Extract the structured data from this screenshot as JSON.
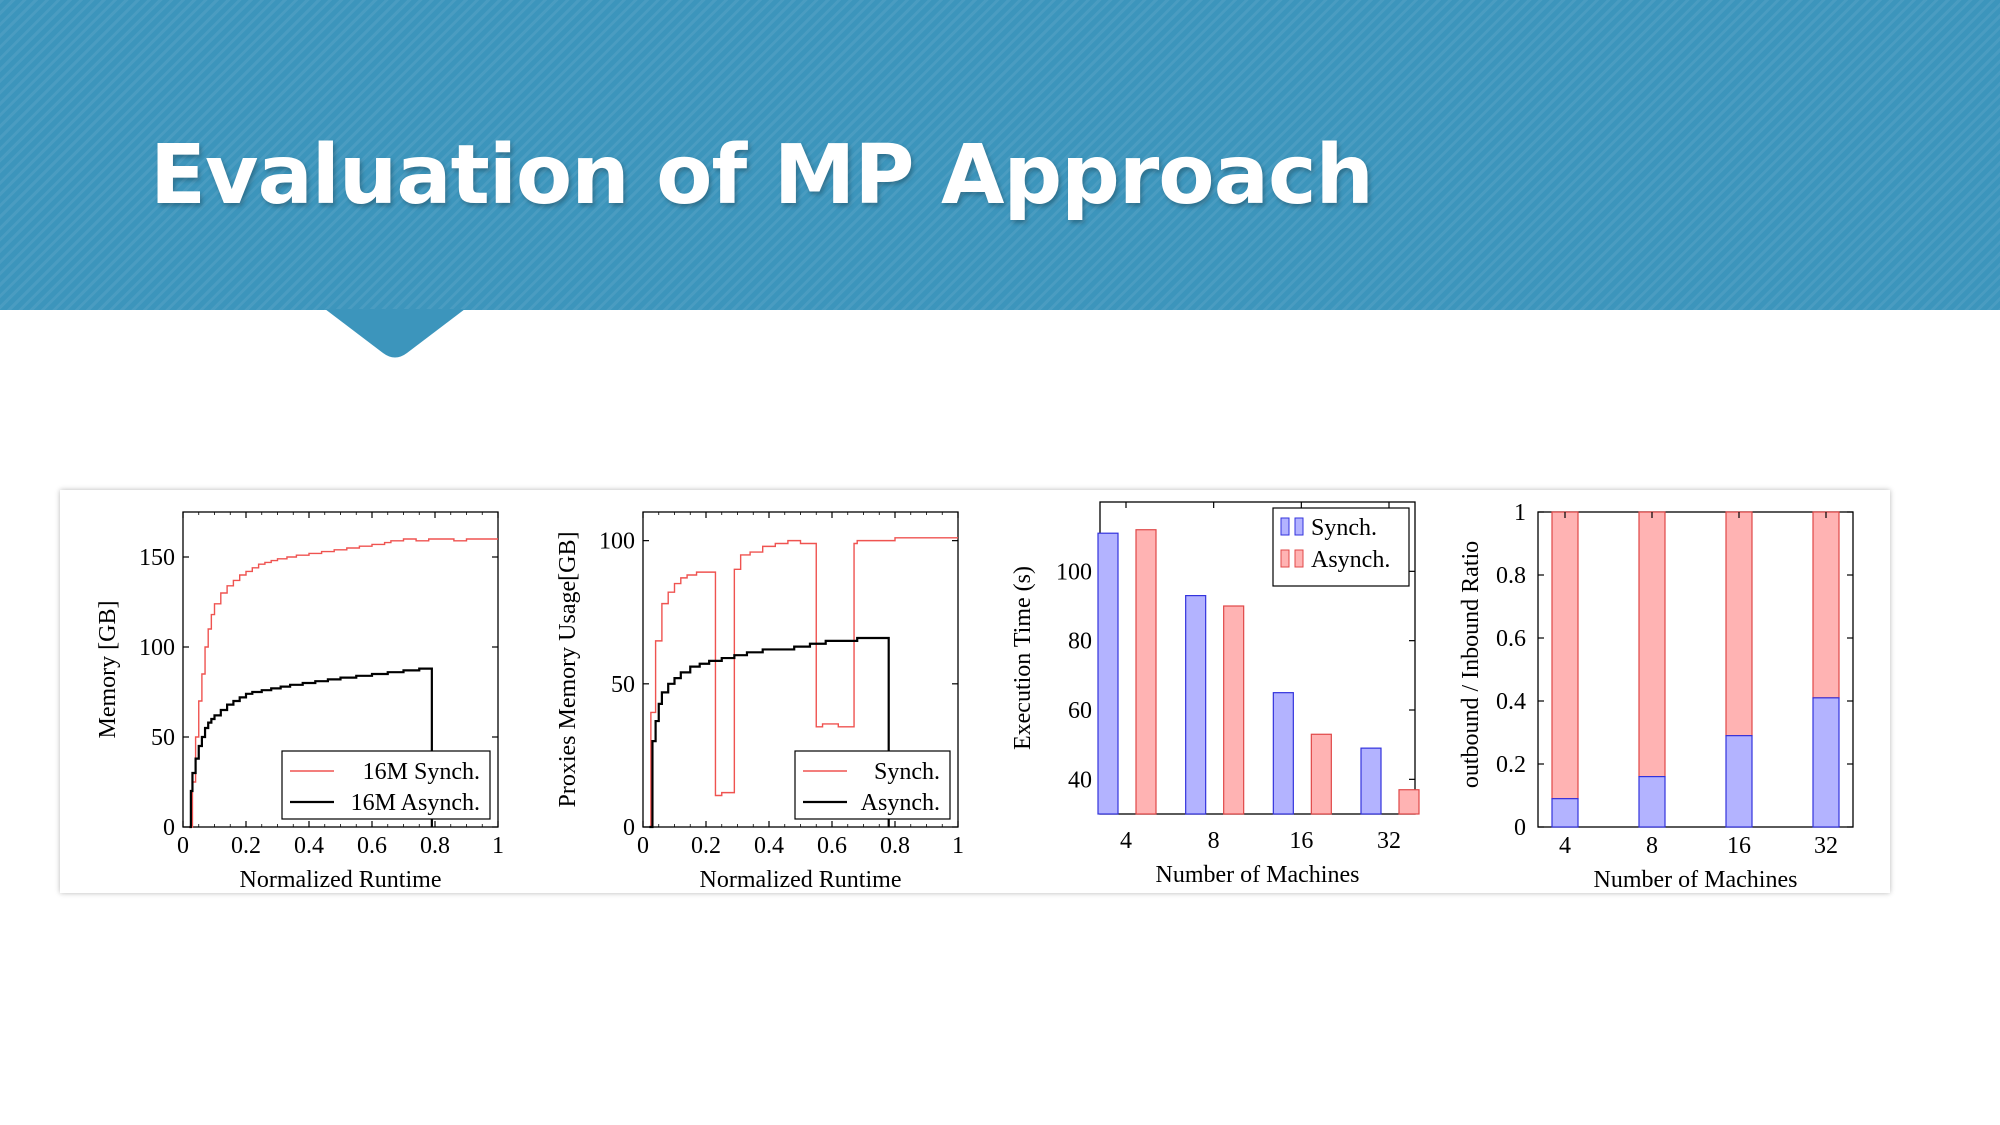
{
  "slide": {
    "title": "Evaluation of MP Approach"
  },
  "colors": {
    "banner": "#3c95bc",
    "synch_line": "#ef5350",
    "asynch_line": "#000000",
    "synch_fill": "#b3b3ff",
    "synch_edge": "#3333dd",
    "asynch_fill": "#ffb3b3",
    "asynch_edge": "#e04848"
  },
  "chart_data": [
    {
      "type": "line",
      "xlabel": "Normalized Runtime",
      "ylabel": "Memory [GB]",
      "xlim": [
        0,
        1
      ],
      "ylim": [
        0,
        175
      ],
      "xticks": [
        0,
        0.2,
        0.4,
        0.6,
        0.8,
        1
      ],
      "xtick_labels": [
        "0",
        "0.2",
        "0.4",
        "0.6",
        "0.8",
        "1"
      ],
      "yticks": [
        0,
        50,
        100,
        150
      ],
      "ytick_labels": [
        "0",
        "50",
        "100",
        "150"
      ],
      "legend_position": "bottom-right",
      "series": [
        {
          "name": "16M Synch.",
          "step": true,
          "x": [
            0.02,
            0.03,
            0.04,
            0.05,
            0.06,
            0.07,
            0.08,
            0.09,
            0.1,
            0.12,
            0.14,
            0.16,
            0.18,
            0.2,
            0.22,
            0.24,
            0.26,
            0.28,
            0.3,
            0.33,
            0.36,
            0.4,
            0.44,
            0.48,
            0.52,
            0.56,
            0.6,
            0.64,
            0.66,
            0.7,
            0.74,
            0.78,
            0.82,
            0.86,
            0.9,
            0.95,
            1.0
          ],
          "y": [
            0,
            25,
            50,
            70,
            85,
            100,
            110,
            118,
            124,
            130,
            134,
            137,
            140,
            142,
            144,
            146,
            147,
            148,
            149,
            150,
            151,
            152,
            153,
            154,
            155,
            156,
            157,
            158,
            159,
            160,
            159,
            160,
            160,
            159,
            160,
            160,
            160
          ]
        },
        {
          "name": "16M Asynch.",
          "step": true,
          "x": [
            0.02,
            0.025,
            0.03,
            0.04,
            0.05,
            0.06,
            0.07,
            0.08,
            0.09,
            0.1,
            0.12,
            0.14,
            0.16,
            0.18,
            0.2,
            0.22,
            0.25,
            0.28,
            0.31,
            0.34,
            0.38,
            0.42,
            0.46,
            0.5,
            0.55,
            0.6,
            0.65,
            0.7,
            0.75,
            0.79
          ],
          "y": [
            0,
            20,
            30,
            38,
            45,
            50,
            55,
            58,
            60,
            62,
            65,
            68,
            70,
            72,
            74,
            75,
            76,
            77,
            78,
            79,
            80,
            81,
            82,
            83,
            84,
            85,
            86,
            87,
            88,
            0
          ]
        }
      ]
    },
    {
      "type": "line",
      "xlabel": "Normalized Runtime",
      "ylabel": "Proxies Memory Usage[GB]",
      "xlim": [
        0,
        1
      ],
      "ylim": [
        0,
        110
      ],
      "xticks": [
        0,
        0.2,
        0.4,
        0.6,
        0.8,
        1
      ],
      "xtick_labels": [
        "0",
        "0.2",
        "0.4",
        "0.6",
        "0.8",
        "1"
      ],
      "yticks": [
        0,
        50,
        100
      ],
      "ytick_labels": [
        "0",
        "50",
        "100"
      ],
      "legend_position": "bottom-right",
      "series": [
        {
          "name": "Synch.",
          "step": true,
          "x": [
            0.025,
            0.04,
            0.06,
            0.08,
            0.1,
            0.12,
            0.14,
            0.17,
            0.23,
            0.25,
            0.27,
            0.29,
            0.31,
            0.34,
            0.38,
            0.42,
            0.46,
            0.5,
            0.55,
            0.57,
            0.62,
            0.67,
            0.68,
            0.72,
            0.76,
            0.8,
            0.85,
            0.9,
            0.95,
            1.0
          ],
          "y": [
            40,
            65,
            78,
            82,
            85,
            87,
            88,
            89,
            11,
            12,
            12,
            90,
            95,
            96,
            98,
            99,
            100,
            99,
            35,
            36,
            35,
            99,
            100,
            100,
            100,
            101,
            101,
            101,
            101,
            101
          ]
        },
        {
          "name": "Asynch.",
          "step": true,
          "x": [
            0.02,
            0.03,
            0.04,
            0.05,
            0.06,
            0.08,
            0.1,
            0.12,
            0.15,
            0.18,
            0.21,
            0.25,
            0.29,
            0.33,
            0.38,
            0.43,
            0.48,
            0.53,
            0.58,
            0.63,
            0.68,
            0.72,
            0.78
          ],
          "y": [
            0,
            30,
            37,
            43,
            47,
            50,
            52,
            54,
            56,
            57,
            58,
            59,
            60,
            61,
            62,
            62,
            63,
            64,
            65,
            65,
            66,
            66,
            0
          ]
        }
      ]
    },
    {
      "type": "bar",
      "xlabel": "Number of Machines",
      "ylabel": "Execution Time (s)",
      "categories": [
        "4",
        "8",
        "16",
        "32"
      ],
      "ylim": [
        30,
        120
      ],
      "yticks": [
        40,
        60,
        80,
        100
      ],
      "ytick_labels": [
        "40",
        "60",
        "80",
        "100"
      ],
      "legend_position": "top-right",
      "series": [
        {
          "name": "Synch.",
          "values": [
            111,
            93,
            65,
            49
          ]
        },
        {
          "name": "Asynch.",
          "values": [
            112,
            90,
            53,
            37
          ]
        }
      ]
    },
    {
      "type": "bar",
      "stacked": true,
      "xlabel": "Number of Machines",
      "ylabel": "outbound / Inbound Ratio",
      "categories": [
        "4",
        "8",
        "16",
        "32"
      ],
      "ylim": [
        0,
        1
      ],
      "yticks": [
        0,
        0.2,
        0.4,
        0.6,
        0.8,
        1
      ],
      "ytick_labels": [
        "0",
        "0.2",
        "0.4",
        "0.6",
        "0.8",
        "1"
      ],
      "series": [
        {
          "values": [
            0.09,
            0.16,
            0.29,
            0.41
          ]
        },
        {
          "values": [
            0.91,
            0.84,
            0.71,
            0.59
          ]
        }
      ]
    }
  ]
}
